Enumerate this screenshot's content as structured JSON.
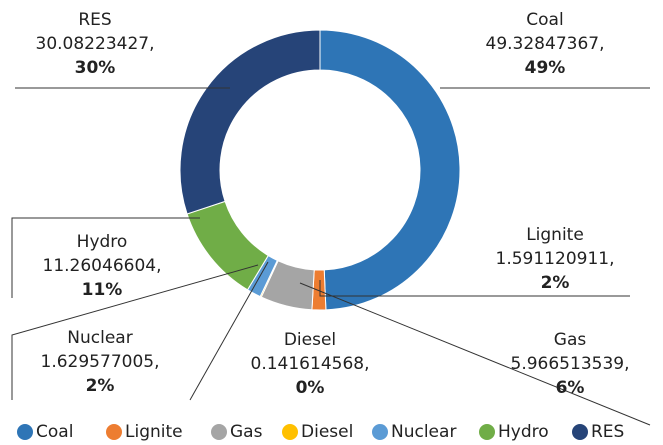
{
  "chart_data": {
    "type": "donut",
    "categories": [
      "Coal",
      "Lignite",
      "Gas",
      "Diesel",
      "Nuclear",
      "Hydro",
      "RES"
    ],
    "values": [
      49.32847367,
      1.591120911,
      5.966513539,
      0.141614568,
      1.629577005,
      11.26046604,
      30.08223427
    ],
    "value_labels": [
      "49.32847367,",
      "1.591120911,",
      "5.966513539,",
      "0.141614568,",
      "1.629577005,",
      "11.26046604,",
      "30.08223427,"
    ],
    "percent_labels": [
      "49%",
      "2%",
      "6%",
      "0%",
      "2%",
      "11%",
      "30%"
    ],
    "colors": [
      "#2e75b6",
      "#ed7d31",
      "#a5a5a5",
      "#ffc000",
      "#5b9bd5",
      "#70ad47",
      "#264478"
    ],
    "legend": "bottom"
  }
}
